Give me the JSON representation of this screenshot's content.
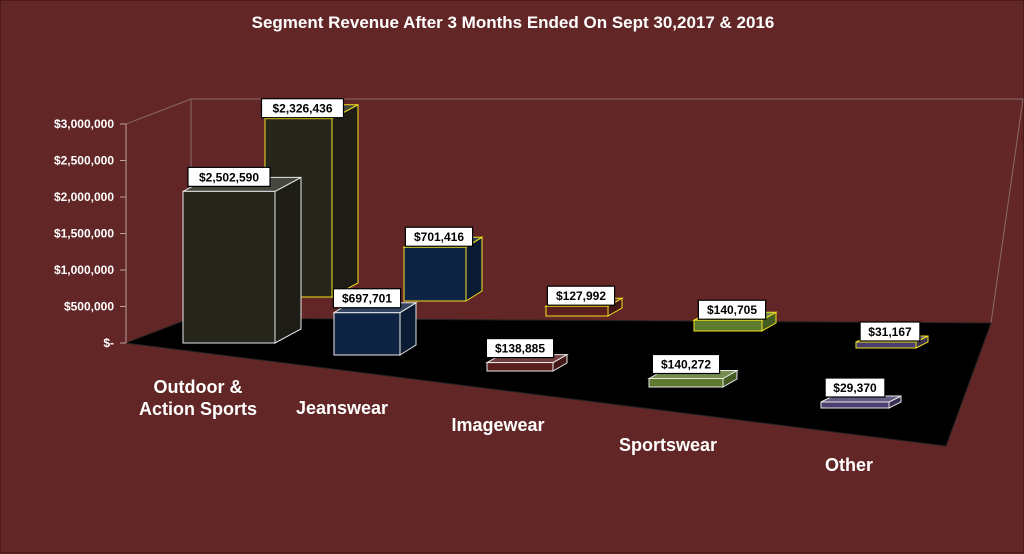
{
  "chart_data": {
    "type": "bar",
    "title": "Segment Revenue After 3 Months Ended On Sept 30,2017 & 2016",
    "categories": [
      "Outdoor & Action Sports",
      "Jeanswear",
      "Imagewear",
      "Sportswear",
      "Other"
    ],
    "category_lines": [
      [
        "Outdoor &",
        "Action Sports"
      ],
      [
        "Jeanswear"
      ],
      [
        "Imagewear"
      ],
      [
        "Sportswear"
      ],
      [
        "Other"
      ]
    ],
    "series": [
      {
        "values": [
          2502590,
          697701,
          138885,
          140272,
          29370
        ],
        "color": "#26261c",
        "edge": "#e8e8e8"
      },
      {
        "values": [
          2326436,
          701416,
          127992,
          140705,
          31167
        ],
        "color": "#26261c",
        "edge": "#f2e21e"
      }
    ],
    "bar_colors": [
      "#26261c",
      "#0f2444",
      "#5a1e1e",
      "#5e7a2e",
      "#4a3f6e"
    ],
    "data_labels": [
      [
        "$2,502,590",
        "$697,701",
        "$138,885",
        "$140,272",
        "$29,370"
      ],
      [
        "$2,326,436",
        "$701,416",
        "$127,992",
        "$140,705",
        "$31,167"
      ]
    ],
    "y_ticks": [
      "$-",
      "$500,000",
      "$1,000,000",
      "$1,500,000",
      "$2,000,000",
      "$2,500,000",
      "$3,000,000"
    ],
    "ylim": [
      0,
      3000000
    ],
    "grid": false,
    "legend": "none"
  }
}
